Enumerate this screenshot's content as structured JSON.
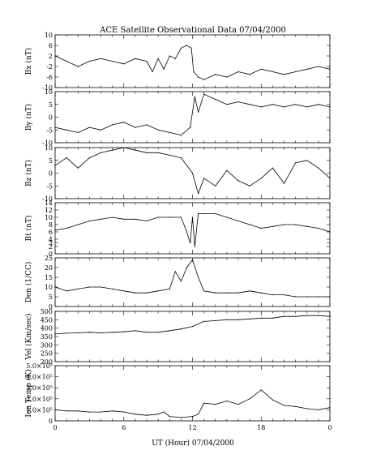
{
  "chart_data": {
    "type": "line",
    "title": "ACE Satellite Observational Data   07/04/2000",
    "xlabel": "UT (Hour)   07/04/2000",
    "x_ticks": [
      "0",
      "6",
      "12",
      "18",
      "0"
    ],
    "x_range_hours": [
      0,
      24
    ],
    "grid": false,
    "panels": [
      {
        "ylabel": "Bx (nT)",
        "ylim": [
          -10,
          10
        ],
        "y_ticks": [
          "-10",
          "-6",
          "-2",
          "2",
          "6",
          "10"
        ],
        "x": [
          0,
          1,
          2,
          3,
          4,
          5,
          6,
          7,
          8,
          8.5,
          9,
          9.5,
          10,
          10.5,
          11,
          11.5,
          11.9,
          12.1,
          12.5,
          13,
          14,
          15,
          16,
          17,
          18,
          19,
          20,
          21,
          22,
          23,
          24
        ],
        "values": [
          2,
          0,
          -2,
          0,
          1,
          0,
          -1,
          1,
          0,
          -4,
          1,
          -3,
          2,
          1,
          5,
          6,
          5,
          -4,
          -6,
          -7,
          -5,
          -6,
          -4,
          -5,
          -3,
          -4,
          -5,
          -4,
          -3,
          -2,
          -3
        ]
      },
      {
        "ylabel": "By (nT)",
        "ylim": [
          -10,
          10
        ],
        "y_ticks": [
          "-10",
          "-5",
          "0",
          "5",
          "10"
        ],
        "x": [
          0,
          1,
          2,
          3,
          4,
          5,
          6,
          7,
          8,
          9,
          10,
          11,
          11.8,
          12.2,
          12.5,
          13,
          14,
          15,
          16,
          17,
          18,
          19,
          20,
          21,
          22,
          23,
          24
        ],
        "values": [
          -4,
          -5,
          -6,
          -4,
          -5,
          -3,
          -2,
          -4,
          -3,
          -5,
          -6,
          -7,
          -4,
          8,
          2,
          9,
          7,
          5,
          6,
          5,
          4,
          5,
          4,
          5,
          4,
          5,
          4
        ]
      },
      {
        "ylabel": "Bz (nT)",
        "ylim": [
          -10,
          10
        ],
        "y_ticks": [
          "-10",
          "-5",
          "0",
          "5",
          "10"
        ],
        "x": [
          0,
          1,
          2,
          3,
          4,
          5,
          6,
          7,
          8,
          9,
          10,
          11,
          12,
          12.5,
          13,
          14,
          15,
          16,
          17,
          18,
          19,
          20,
          21,
          22,
          23,
          24
        ],
        "values": [
          3,
          6,
          2,
          6,
          8,
          9,
          10,
          9,
          8,
          8,
          7,
          6,
          0,
          -8,
          -2,
          -5,
          1,
          -3,
          -5,
          -2,
          2,
          -4,
          4,
          5,
          2,
          -2
        ]
      },
      {
        "ylabel": "Bt (nT)",
        "ylim": [
          0,
          14
        ],
        "y_ticks": [
          "0",
          "2",
          "3",
          "4",
          "6",
          "8",
          "10",
          "12",
          "14"
        ],
        "x": [
          0,
          1,
          2,
          3,
          4,
          5,
          6,
          7,
          8,
          9,
          10,
          11,
          11.5,
          11.8,
          12,
          12.2,
          12.5,
          13,
          14,
          15,
          16,
          17,
          18,
          19,
          20,
          21,
          22,
          23,
          24
        ],
        "values": [
          6.5,
          7,
          8,
          9,
          9.5,
          10,
          9.5,
          9.5,
          9,
          10,
          10,
          10,
          6,
          3,
          10,
          2,
          11,
          11,
          11,
          10,
          9,
          8,
          7,
          7.5,
          8,
          8,
          7.5,
          7,
          6
        ]
      },
      {
        "ylabel": "Den (1/CC)",
        "ylim": [
          0,
          25
        ],
        "y_ticks": [
          "0",
          "5",
          "10",
          "15",
          "20",
          "25"
        ],
        "x": [
          0,
          1,
          2,
          3,
          4,
          5,
          6,
          7,
          8,
          9,
          10,
          10.5,
          11,
          11.5,
          12,
          12.5,
          13,
          14,
          15,
          16,
          17,
          18,
          19,
          20,
          21,
          22,
          23,
          24
        ],
        "values": [
          10,
          8,
          9,
          10,
          10,
          9,
          8,
          7,
          7,
          8,
          9,
          18,
          13,
          20,
          24,
          15,
          8,
          7,
          7,
          7,
          8,
          7,
          6,
          6,
          5,
          5,
          5,
          5
        ]
      },
      {
        "ylabel": "Vel (Km/sec)",
        "ylim": [
          200,
          500
        ],
        "y_ticks": [
          "200",
          "250",
          "300",
          "350",
          "400",
          "450",
          "500"
        ],
        "x": [
          0,
          1,
          2,
          3,
          4,
          5,
          6,
          7,
          8,
          9,
          10,
          11,
          12,
          13,
          14,
          15,
          16,
          17,
          18,
          19,
          20,
          21,
          22,
          23,
          24
        ],
        "values": [
          365,
          370,
          372,
          375,
          372,
          375,
          378,
          385,
          375,
          375,
          385,
          395,
          410,
          440,
          445,
          450,
          450,
          455,
          460,
          460,
          470,
          470,
          475,
          475,
          470
        ]
      },
      {
        "ylabel": "Ion Temp (K)",
        "ylim": [
          0,
          500000
        ],
        "y_ticks": [
          "0",
          "1.0×10⁵",
          "2.0×10⁵",
          "3.0×10⁵",
          "4.0×10⁵",
          "5.0×10⁵"
        ],
        "x": [
          0,
          1,
          2,
          3,
          4,
          5,
          6,
          7,
          8,
          9,
          9.5,
          10,
          11,
          12,
          12.5,
          13,
          14,
          15,
          16,
          17,
          18,
          19,
          20,
          21,
          22,
          23,
          24
        ],
        "values": [
          100000,
          90000,
          90000,
          80000,
          80000,
          90000,
          80000,
          60000,
          50000,
          60000,
          80000,
          40000,
          30000,
          40000,
          60000,
          160000,
          150000,
          180000,
          150000,
          200000,
          280000,
          190000,
          140000,
          130000,
          110000,
          100000,
          120000
        ]
      }
    ]
  }
}
